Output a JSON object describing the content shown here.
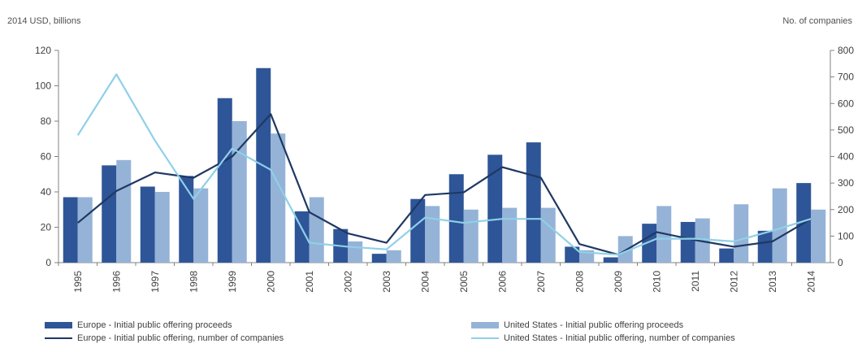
{
  "chart_data": {
    "type": "bar",
    "ylabel_left": "2014 USD, billions",
    "ylabel_right": "No. of companies",
    "categories": [
      "1995",
      "1996",
      "1997",
      "1998",
      "1999",
      "2000",
      "2001",
      "2002",
      "2003",
      "2004",
      "2005",
      "2006",
      "2007",
      "2008",
      "2009",
      "2010",
      "2011",
      "2012",
      "2013",
      "2014"
    ],
    "ylim_left": [
      0,
      120
    ],
    "yticks_left": [
      0,
      20,
      40,
      60,
      80,
      100,
      120
    ],
    "ylim_right": [
      0,
      800
    ],
    "yticks_right": [
      0,
      100,
      200,
      300,
      400,
      500,
      600,
      700,
      800
    ],
    "grid": false,
    "legend_position": "bottom",
    "series": [
      {
        "name": "Europe - Initial public offering proceeds",
        "kind": "bar",
        "axis": "left",
        "color": "#2e5597",
        "values": [
          37,
          55,
          43,
          49,
          93,
          110,
          29,
          19,
          5,
          36,
          50,
          61,
          68,
          9,
          3,
          22,
          23,
          8,
          18,
          45
        ]
      },
      {
        "name": "United States - Initial public offering proceeds",
        "kind": "bar",
        "axis": "left",
        "color": "#95b3d7",
        "values": [
          37,
          58,
          40,
          42,
          80,
          73,
          37,
          12,
          7,
          32,
          30,
          31,
          31,
          7,
          15,
          32,
          25,
          33,
          42,
          30
        ]
      },
      {
        "name": "Europe - Initial public offering, number of companies",
        "kind": "line",
        "axis": "right",
        "color": "#1f3864",
        "values": [
          150,
          270,
          340,
          320,
          400,
          560,
          190,
          110,
          75,
          255,
          265,
          360,
          320,
          70,
          30,
          115,
          85,
          60,
          80,
          165
        ]
      },
      {
        "name": "United States - Initial public offering, number of companies",
        "kind": "line",
        "axis": "right",
        "color": "#8fd0e8",
        "values": [
          480,
          710,
          460,
          240,
          430,
          350,
          75,
          60,
          50,
          170,
          150,
          165,
          165,
          40,
          30,
          90,
          90,
          80,
          120,
          165
        ]
      }
    ]
  }
}
